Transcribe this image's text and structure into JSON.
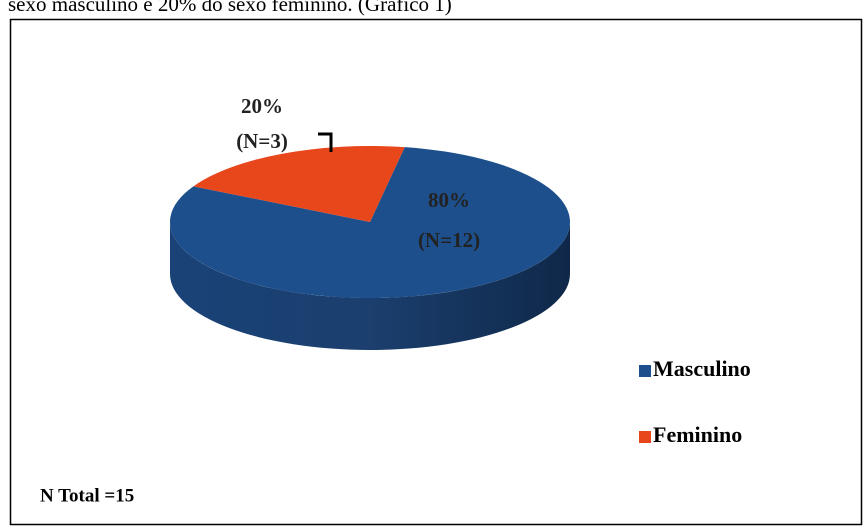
{
  "document": {
    "text": "sexo masculino e 20% do sexo feminino. (Gráfico 1)"
  },
  "chart_data": {
    "type": "pie",
    "categories": [
      "Masculino",
      "Feminino"
    ],
    "values": [
      80,
      20
    ],
    "value_labels": [
      "80%",
      "20%"
    ],
    "counts": [
      12,
      3
    ],
    "count_labels": [
      "(N=12)",
      "(N=3)"
    ],
    "colors": [
      "#1d4f8c",
      "#e8471c"
    ],
    "legend": "right",
    "annotation": "N Total =15"
  }
}
